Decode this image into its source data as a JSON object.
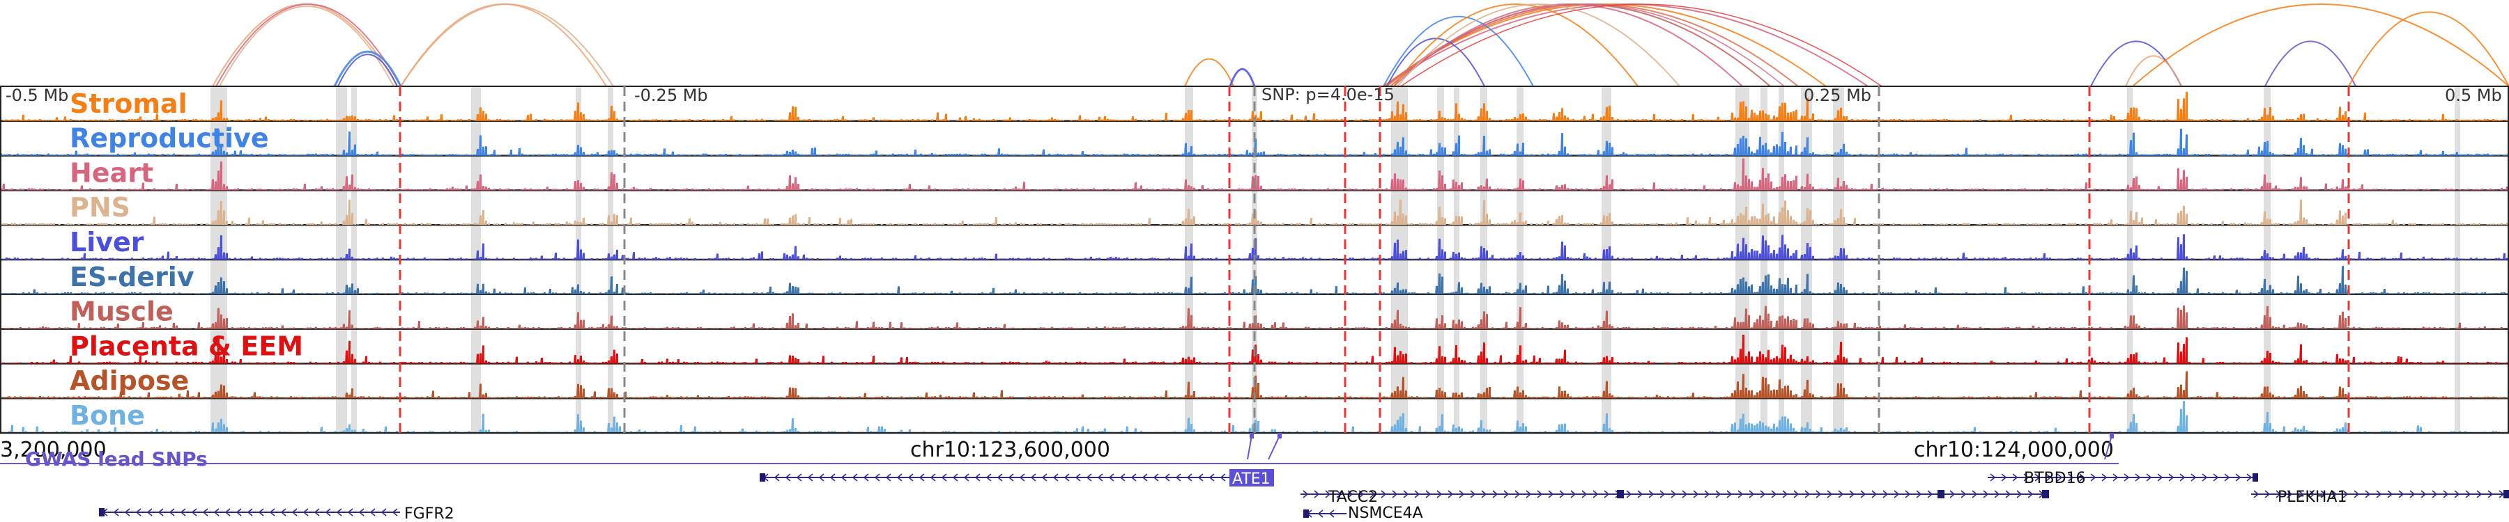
{
  "tracks": [
    {
      "name": "Stromal",
      "color": "#f57f17"
    },
    {
      "name": "Reproductive",
      "color": "#3f84e5"
    },
    {
      "name": "Heart",
      "color": "#d6667e"
    },
    {
      "name": "PNS",
      "color": "#dcb38f"
    },
    {
      "name": "Liver",
      "color": "#4c4fd9"
    },
    {
      "name": "ES-deriv",
      "color": "#3d73a8"
    },
    {
      "name": "Muscle",
      "color": "#c0605a"
    },
    {
      "name": "Placenta & EEM",
      "color": "#dd1111"
    },
    {
      "name": "Adipose",
      "color": "#b5542a"
    },
    {
      "name": "Bone",
      "color": "#6fb1e0"
    }
  ],
  "scale_labels": [
    "-0.5 Mb",
    "-0.25 Mb",
    "0.25 Mb",
    "0.5 Mb"
  ],
  "snp_label": "SNP: p=4.0e-15",
  "coordinates": [
    "3,200,000",
    "chr10:123,600,000",
    "chr10:124,000,000"
  ],
  "gwas_label": "GWAS lead SNPs",
  "genes": [
    "FGFR2",
    "ATE1",
    "TACC2",
    "NSMCE4A",
    "BTBD16",
    "PLEKHA1"
  ]
}
